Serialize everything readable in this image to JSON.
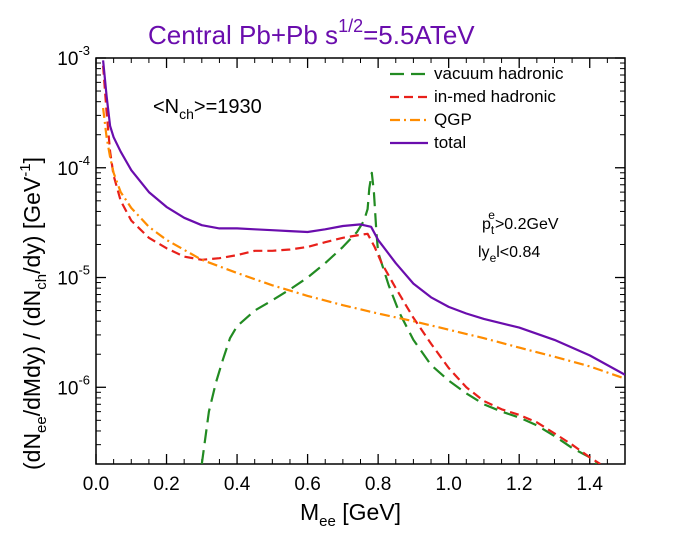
{
  "chart_data": {
    "type": "line",
    "title": {
      "main": "Central Pb+Pb  s",
      "sup": "1/2",
      "tail": "=5.5ATeV"
    },
    "xlabel": {
      "main": "M",
      "sub": "ee",
      "tail": " [GeV]"
    },
    "ylabel": {
      "a": "(dN",
      "a_sub": "ee",
      "b": "/dMdy) / (dN",
      "b_sub": "ch",
      "c": "/dy)  [GeV",
      "c_sup": "-1",
      "d": "]"
    },
    "xlim": [
      0,
      1.5
    ],
    "ylim": [
      2e-07,
      0.001
    ],
    "yscale": "log",
    "x_ticks": [
      "0.0",
      "0.2",
      "0.4",
      "0.6",
      "0.8",
      "1.0",
      "1.2",
      "1.4"
    ],
    "y_ticks": [
      {
        "base": "10",
        "exp": "-3"
      },
      {
        "base": "10",
        "exp": "-4"
      },
      {
        "base": "10",
        "exp": "-5"
      },
      {
        "base": "10",
        "exp": "-6"
      }
    ],
    "annotations": {
      "nch": {
        "open": "<N",
        "sub": "ch",
        "close": ">=1930"
      },
      "pt": {
        "main": "p",
        "sub": "t",
        "sup": "e",
        "tail": ">0.2GeV"
      },
      "ye": {
        "main": "ly",
        "sub": "e",
        "tail": "l<0.84"
      }
    },
    "legend_position": "top-right",
    "series": [
      {
        "name": "vacuum hadronic",
        "color": "#228B22",
        "dash": "long-dash",
        "points": [
          [
            0.3,
            2e-07
          ],
          [
            0.32,
            6e-07
          ],
          [
            0.34,
            1.1e-06
          ],
          [
            0.36,
            1.8e-06
          ],
          [
            0.38,
            2.8e-06
          ],
          [
            0.4,
            3.6e-06
          ],
          [
            0.45,
            5e-06
          ],
          [
            0.5,
            6.2e-06
          ],
          [
            0.55,
            7.8e-06
          ],
          [
            0.6,
            1e-05
          ],
          [
            0.65,
            1.35e-05
          ],
          [
            0.7,
            1.9e-05
          ],
          [
            0.74,
            2.6e-05
          ],
          [
            0.76,
            3.3e-05
          ],
          [
            0.77,
            4.2e-05
          ],
          [
            0.775,
            6.5e-05
          ],
          [
            0.782,
            9e-05
          ],
          [
            0.788,
            6e-05
          ],
          [
            0.795,
            2.6e-05
          ],
          [
            0.8,
            1.7e-05
          ],
          [
            0.83,
            8.5e-06
          ],
          [
            0.86,
            4.8e-06
          ],
          [
            0.9,
            2.7e-06
          ],
          [
            0.95,
            1.6e-06
          ],
          [
            1.0,
            1.15e-06
          ],
          [
            1.05,
            8.8e-07
          ],
          [
            1.1,
            7e-07
          ],
          [
            1.15,
            6e-07
          ],
          [
            1.2,
            5.3e-07
          ],
          [
            1.25,
            4.5e-07
          ],
          [
            1.3,
            3.6e-07
          ],
          [
            1.35,
            2.8e-07
          ],
          [
            1.4,
            2.3e-07
          ],
          [
            1.42,
            2e-07
          ]
        ]
      },
      {
        "name": "in-med hadronic",
        "color": "#e8201a",
        "dash": "short-dash",
        "points": [
          [
            0.02,
            0.00085
          ],
          [
            0.03,
            0.00032
          ],
          [
            0.04,
            0.00014
          ],
          [
            0.05,
            8.5e-05
          ],
          [
            0.07,
            5e-05
          ],
          [
            0.1,
            3.3e-05
          ],
          [
            0.15,
            2.3e-05
          ],
          [
            0.2,
            1.85e-05
          ],
          [
            0.25,
            1.55e-05
          ],
          [
            0.3,
            1.45e-05
          ],
          [
            0.35,
            1.5e-05
          ],
          [
            0.4,
            1.6e-05
          ],
          [
            0.45,
            1.75e-05
          ],
          [
            0.5,
            1.75e-05
          ],
          [
            0.55,
            1.8e-05
          ],
          [
            0.6,
            1.9e-05
          ],
          [
            0.65,
            2.1e-05
          ],
          [
            0.7,
            2.3e-05
          ],
          [
            0.75,
            2.45e-05
          ],
          [
            0.77,
            2.5e-05
          ],
          [
            0.79,
            1.9e-05
          ],
          [
            0.81,
            1.35e-05
          ],
          [
            0.85,
            8e-06
          ],
          [
            0.9,
            4.3e-06
          ],
          [
            0.95,
            2.5e-06
          ],
          [
            1.0,
            1.5e-06
          ],
          [
            1.05,
            1e-06
          ],
          [
            1.1,
            7.5e-07
          ],
          [
            1.15,
            6.3e-07
          ],
          [
            1.2,
            5.6e-07
          ],
          [
            1.25,
            4.8e-07
          ],
          [
            1.3,
            3.8e-07
          ],
          [
            1.35,
            3e-07
          ],
          [
            1.4,
            2.3e-07
          ],
          [
            1.43,
            2e-07
          ]
        ]
      },
      {
        "name": "QGP",
        "color": "#ff8c00",
        "dash": "dash-dot",
        "points": [
          [
            0.02,
            0.00035
          ],
          [
            0.03,
            0.00019
          ],
          [
            0.04,
            0.000125
          ],
          [
            0.05,
            9e-05
          ],
          [
            0.07,
            6e-05
          ],
          [
            0.1,
            4.3e-05
          ],
          [
            0.15,
            2.9e-05
          ],
          [
            0.2,
            2.2e-05
          ],
          [
            0.3,
            1.45e-05
          ],
          [
            0.4,
            1.1e-05
          ],
          [
            0.5,
            8.5e-06
          ],
          [
            0.6,
            6.8e-06
          ],
          [
            0.7,
            5.6e-06
          ],
          [
            0.8,
            4.7e-06
          ],
          [
            0.9,
            4e-06
          ],
          [
            1.0,
            3.35e-06
          ],
          [
            1.1,
            2.8e-06
          ],
          [
            1.2,
            2.3e-06
          ],
          [
            1.3,
            1.9e-06
          ],
          [
            1.4,
            1.55e-06
          ],
          [
            1.5,
            1.2e-06
          ]
        ]
      },
      {
        "name": "total",
        "color": "#6a0dad",
        "dash": "solid",
        "points": [
          [
            0.02,
            0.00095
          ],
          [
            0.03,
            0.00045
          ],
          [
            0.04,
            0.00024
          ],
          [
            0.05,
            0.00019
          ],
          [
            0.07,
            0.00014
          ],
          [
            0.1,
            9.5e-05
          ],
          [
            0.15,
            6e-05
          ],
          [
            0.2,
            4.4e-05
          ],
          [
            0.25,
            3.5e-05
          ],
          [
            0.3,
            3e-05
          ],
          [
            0.35,
            2.8e-05
          ],
          [
            0.4,
            2.8e-05
          ],
          [
            0.45,
            2.75e-05
          ],
          [
            0.5,
            2.7e-05
          ],
          [
            0.55,
            2.65e-05
          ],
          [
            0.6,
            2.6e-05
          ],
          [
            0.65,
            2.75e-05
          ],
          [
            0.7,
            2.95e-05
          ],
          [
            0.75,
            3.05e-05
          ],
          [
            0.78,
            2.9e-05
          ],
          [
            0.8,
            2.2e-05
          ],
          [
            0.85,
            1.35e-05
          ],
          [
            0.9,
            8.8e-06
          ],
          [
            0.95,
            6.6e-06
          ],
          [
            1.0,
            5.4e-06
          ],
          [
            1.05,
            4.7e-06
          ],
          [
            1.1,
            4.2e-06
          ],
          [
            1.2,
            3.5e-06
          ],
          [
            1.3,
            2.7e-06
          ],
          [
            1.4,
            1.95e-06
          ],
          [
            1.5,
            1.3e-06
          ]
        ]
      }
    ]
  }
}
